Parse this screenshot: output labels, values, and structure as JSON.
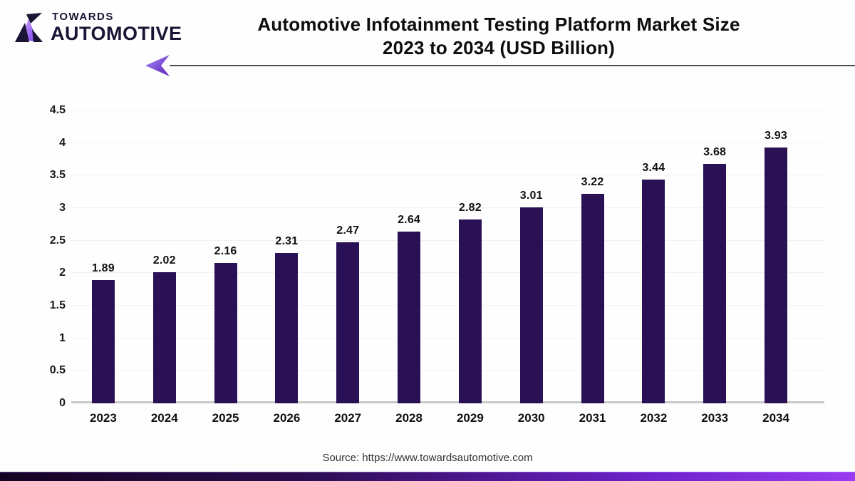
{
  "logo": {
    "line1": "TOWARDS",
    "line2": "AUTOMOTIVE"
  },
  "title": {
    "line1": "Automotive Infotainment Testing Platform Market Size",
    "line2": "2023 to 2034 (USD Billion)"
  },
  "source": "Source: https://www.towardsautomotive.com",
  "colors": {
    "bar": "#2a1155",
    "accent_purple": "#7c3aed",
    "logo_text": "#1b1434",
    "gridline": "#f1f1f1",
    "baseline": "#c9c9c9",
    "footer_gradient_left": "#150322",
    "footer_gradient_right": "#9a3bf2"
  },
  "chart_data": {
    "type": "bar",
    "title": "Automotive Infotainment Testing Platform Market Size 2023 to 2034 (USD Billion)",
    "categories": [
      "2023",
      "2024",
      "2025",
      "2026",
      "2027",
      "2028",
      "2029",
      "2030",
      "2031",
      "2032",
      "2033",
      "2034"
    ],
    "values": [
      1.89,
      2.02,
      2.16,
      2.31,
      2.47,
      2.64,
      2.82,
      3.01,
      3.22,
      3.44,
      3.68,
      3.93
    ],
    "xlabel": "",
    "ylabel": "",
    "ylim": [
      0,
      4.5
    ],
    "yticks": [
      0,
      0.5,
      1,
      1.5,
      2,
      2.5,
      3,
      3.5,
      4,
      4.5
    ],
    "grid": true,
    "legend": false,
    "value_labels": true,
    "bar_color": "#2a1155"
  }
}
